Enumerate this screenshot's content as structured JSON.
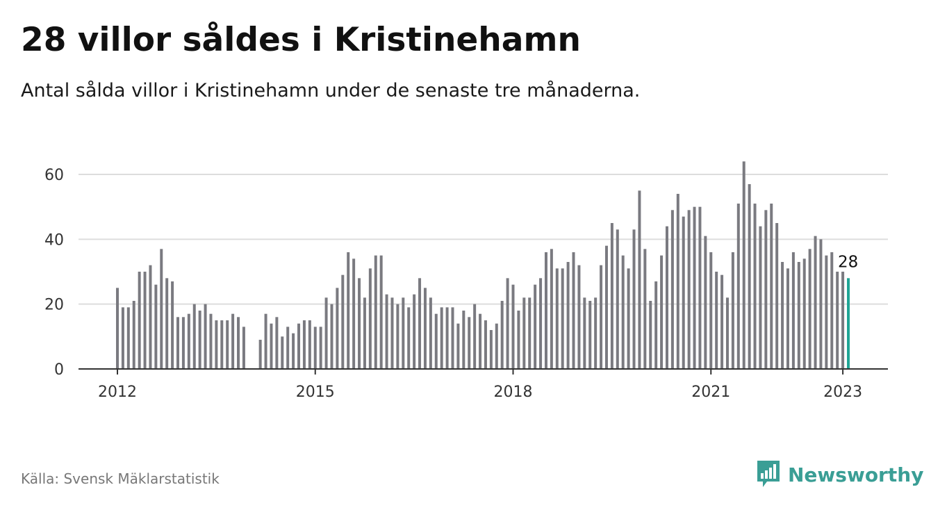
{
  "header": {
    "title": "28 villor såldes i Kristinehamn",
    "subtitle": "Antal sålda villor i Kristinehamn under de senaste tre månaderna."
  },
  "footer": {
    "source": "Källa: Svensk Mäklarstatistik",
    "brand": "Newsworthy"
  },
  "colors": {
    "bar": "#7a7a80",
    "highlight": "#20a595",
    "grid": "#dddddd",
    "axis": "#333333",
    "brand": "#3a9e95"
  },
  "chart_data": {
    "type": "bar",
    "title": "28 villor såldes i Kristinehamn",
    "subtitle": "Antal sålda villor i Kristinehamn under de senaste tre månaderna.",
    "x_start": "2012-01",
    "x_end": "2023-01",
    "x_unit": "month",
    "x_ticks": [
      "2012",
      "2015",
      "2018",
      "2021",
      "2023"
    ],
    "y_ticks": [
      0,
      20,
      40,
      60
    ],
    "ylim": [
      0,
      66
    ],
    "grid": true,
    "values": [
      25,
      19,
      19,
      21,
      30,
      30,
      32,
      26,
      37,
      28,
      27,
      16,
      16,
      17,
      20,
      18,
      20,
      17,
      15,
      15,
      15,
      17,
      16,
      13,
      null,
      null,
      9,
      17,
      14,
      16,
      10,
      13,
      11,
      14,
      15,
      15,
      13,
      13,
      22,
      20,
      25,
      29,
      36,
      34,
      28,
      22,
      31,
      35,
      35,
      23,
      22,
      20,
      22,
      19,
      23,
      28,
      25,
      22,
      17,
      19,
      19,
      19,
      14,
      18,
      16,
      20,
      17,
      15,
      12,
      14,
      21,
      28,
      26,
      18,
      22,
      22,
      26,
      28,
      36,
      37,
      31,
      31,
      33,
      36,
      32,
      22,
      21,
      22,
      32,
      38,
      45,
      43,
      35,
      31,
      43,
      55,
      37,
      21,
      27,
      35,
      44,
      49,
      54,
      47,
      49,
      50,
      50,
      41,
      36,
      30,
      29,
      22,
      36,
      51,
      64,
      57,
      51,
      44,
      49,
      51,
      45,
      33,
      31,
      36,
      33,
      34,
      37,
      41,
      40,
      35,
      36,
      30,
      30,
      28
    ],
    "highlight_last": true,
    "value_label": "28"
  }
}
